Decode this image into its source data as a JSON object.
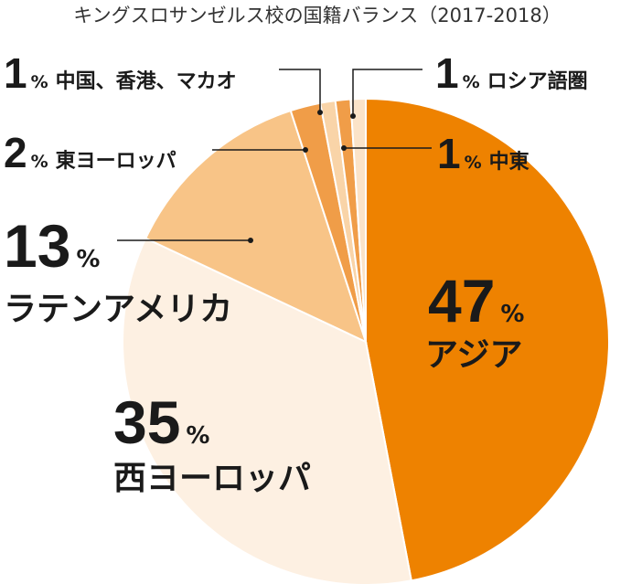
{
  "chart_data": {
    "type": "pie",
    "title": "キングスロサンゼルス校の国籍バランス（2017-2018）",
    "start": "12 o'clock, clockwise",
    "percent_sign": "%",
    "slices": [
      {
        "label": "アジア",
        "value": 47,
        "color": "#ee8200"
      },
      {
        "label": "西ヨーロッパ",
        "value": 35,
        "color": "#fdf0e2"
      },
      {
        "label": "ラテンアメリカ",
        "value": 13,
        "color": "#f8c487"
      },
      {
        "label": "東ヨーロッパ",
        "value": 2,
        "color": "#f09d48"
      },
      {
        "label": "中国、香港、マカオ",
        "value": 1,
        "color": "#f9d4a8"
      },
      {
        "label": "中東",
        "value": 1,
        "color": "#f09d48"
      },
      {
        "label": "ロシア語圏",
        "value": 1,
        "color": "#fbe3c8"
      }
    ]
  }
}
